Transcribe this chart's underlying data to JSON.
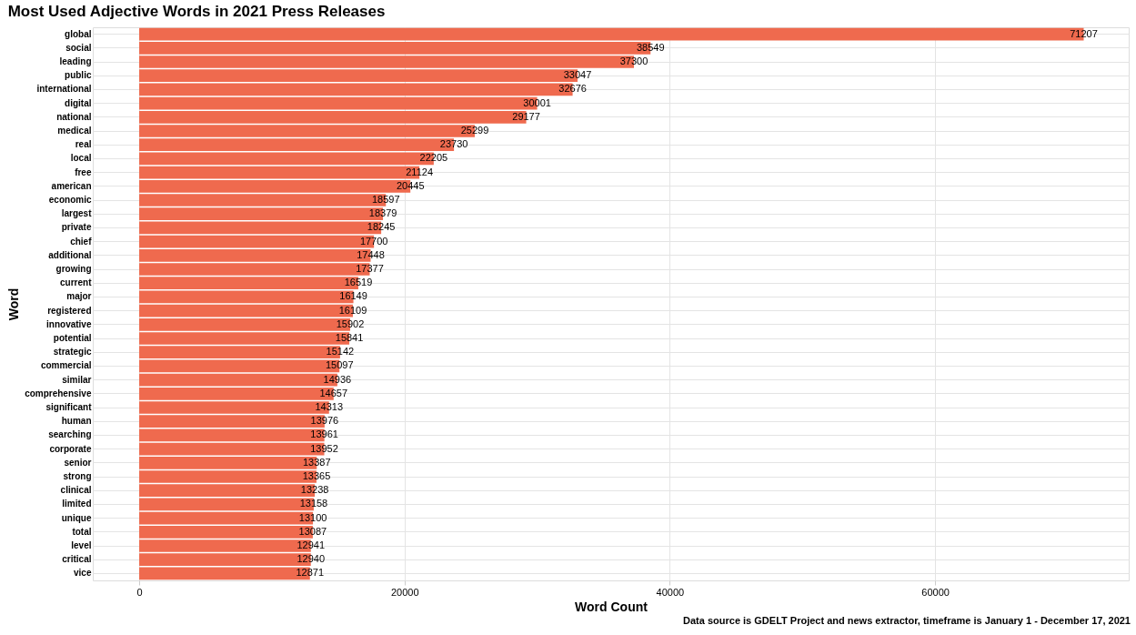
{
  "chart_data": {
    "type": "bar",
    "orientation": "horizontal",
    "title": "Most Used Adjective Words in 2021 Press Releases",
    "xlabel": "Word Count",
    "ylabel": "Word",
    "categories": [
      "global",
      "social",
      "leading",
      "public",
      "international",
      "digital",
      "national",
      "medical",
      "real",
      "local",
      "free",
      "american",
      "economic",
      "largest",
      "private",
      "chief",
      "additional",
      "growing",
      "current",
      "major",
      "registered",
      "innovative",
      "potential",
      "strategic",
      "commercial",
      "similar",
      "comprehensive",
      "significant",
      "human",
      "searching",
      "corporate",
      "senior",
      "strong",
      "clinical",
      "limited",
      "unique",
      "total",
      "level",
      "critical",
      "vice"
    ],
    "values": [
      71207,
      38549,
      37300,
      33047,
      32676,
      30001,
      29177,
      25299,
      23730,
      22205,
      21124,
      20445,
      18597,
      18379,
      18245,
      17700,
      17448,
      17377,
      16519,
      16149,
      16109,
      15902,
      15841,
      15142,
      15097,
      14936,
      14657,
      14313,
      13976,
      13961,
      13952,
      13387,
      13365,
      13238,
      13158,
      13100,
      13087,
      12941,
      12940,
      12871
    ],
    "color": "#ef6a4e",
    "data_labels": true,
    "xlim": [
      -3500,
      74600
    ],
    "xticks": [
      0,
      20000,
      40000,
      60000
    ],
    "grid": true,
    "annotations": [
      "Data source is GDELT Project and news extractor, timeframe is January 1 - December 17, 2021"
    ]
  }
}
